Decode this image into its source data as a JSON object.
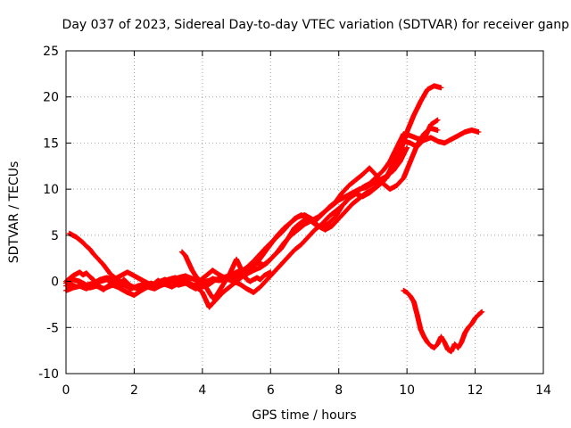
{
  "chart_data": {
    "type": "scatter",
    "title": "Day 037 of 2023, Sidereal Day-to-day VTEC variation (SDTVAR) for receiver ganp",
    "xlabel": "GPS time / hours",
    "ylabel": "SDTVAR / TECUs",
    "xlim": [
      0,
      14
    ],
    "ylim": [
      -10,
      25
    ],
    "xticks": [
      0,
      2,
      4,
      6,
      8,
      10,
      12,
      14
    ],
    "yticks": [
      -10,
      -5,
      0,
      5,
      10,
      15,
      20,
      25
    ],
    "grid": true,
    "marker": "plus",
    "series_color": "#ff0000",
    "series": [
      {
        "x": [
          0.0,
          0.15,
          0.3,
          0.5,
          0.7,
          0.9,
          1.1,
          1.3,
          1.5,
          1.7,
          1.9,
          2.1,
          2.3,
          2.5,
          2.7,
          2.9,
          3.1,
          3.3,
          3.5,
          3.7,
          3.9,
          4.1,
          4.3,
          4.5,
          4.7,
          4.9,
          5.1,
          5.3,
          5.5,
          5.7,
          5.9,
          6.1,
          6.3,
          6.5,
          6.7,
          6.9,
          7.1,
          7.3,
          7.5,
          7.7,
          7.9,
          8.1,
          8.3,
          8.5,
          8.7,
          8.9,
          9.1,
          9.3,
          9.5,
          9.7,
          9.9,
          10.1,
          10.3,
          10.5,
          10.7,
          10.9,
          11.1,
          11.3,
          11.5,
          11.7,
          11.9,
          12.1
        ],
        "y": [
          -0.5,
          -0.3,
          -0.6,
          -0.4,
          -0.7,
          -0.5,
          -0.9,
          -0.3,
          -0.6,
          0.2,
          -0.5,
          -0.8,
          -0.2,
          -0.5,
          0.1,
          -0.3,
          -0.6,
          -0.2,
          0.3,
          -0.4,
          -0.6,
          -0.2,
          0.3,
          0.1,
          0.5,
          0.3,
          0.6,
          0.8,
          1.2,
          1.5,
          2.0,
          2.8,
          3.5,
          4.6,
          5.8,
          6.4,
          6.8,
          6.2,
          5.8,
          6.3,
          7.0,
          8.2,
          9.0,
          9.6,
          10.2,
          10.6,
          11.3,
          12.0,
          13.0,
          14.5,
          16.0,
          15.8,
          15.5,
          15.3,
          15.6,
          15.2,
          15.0,
          15.4,
          15.8,
          16.2,
          16.4,
          16.2
        ]
      },
      {
        "x": [
          0.0,
          0.1,
          0.2,
          0.3,
          0.4,
          0.5,
          0.6,
          0.7,
          0.8,
          0.9,
          1.0,
          1.1,
          1.3,
          1.5,
          1.7,
          1.9,
          2.1,
          2.3,
          2.5,
          2.7,
          2.9,
          3.1,
          3.3,
          3.5,
          3.7,
          3.9,
          4.1,
          4.3,
          4.5,
          4.7,
          4.9,
          5.1,
          5.3,
          5.5,
          5.7,
          5.9,
          6.1,
          6.3,
          6.5,
          6.7,
          6.9,
          7.1,
          7.3,
          7.5,
          7.7,
          7.9,
          8.1,
          8.3,
          8.5,
          8.7,
          8.9,
          9.1,
          9.3,
          9.5,
          9.7,
          9.9,
          10.1,
          10.3,
          10.5,
          10.7,
          10.9
        ],
        "y": [
          0.0,
          0.3,
          0.6,
          0.8,
          1.0,
          0.7,
          0.9,
          0.5,
          0.2,
          -0.2,
          -0.6,
          -0.8,
          -0.5,
          -0.2,
          -0.4,
          -0.8,
          -0.5,
          -0.3,
          -0.6,
          -0.1,
          0.2,
          0.0,
          -0.4,
          -0.2,
          -0.5,
          -0.3,
          0.0,
          0.2,
          0.1,
          0.3,
          0.5,
          1.0,
          1.5,
          2.2,
          3.0,
          3.8,
          4.5,
          5.2,
          6.0,
          6.8,
          7.2,
          6.8,
          6.5,
          7.2,
          8.0,
          8.6,
          9.6,
          10.4,
          11.0,
          11.6,
          12.3,
          11.5,
          10.6,
          10.0,
          10.4,
          11.2,
          13.0,
          14.8,
          16.0,
          16.6,
          16.4
        ]
      },
      {
        "x": [
          0.1,
          0.2,
          0.3,
          0.4,
          0.5,
          0.6,
          0.7,
          0.8,
          0.9,
          1.0,
          1.1,
          1.3,
          1.5,
          1.7,
          1.9,
          2.1,
          2.3,
          2.5,
          2.7,
          2.9,
          3.1,
          3.3,
          3.5,
          3.7,
          3.9,
          4.1,
          4.3,
          4.5,
          4.7,
          4.9,
          5.1,
          5.3,
          5.5,
          5.7,
          5.9,
          6.1,
          6.3,
          6.5,
          6.7,
          6.9,
          7.1,
          7.3,
          7.5,
          7.7,
          7.9,
          8.1,
          8.3,
          8.5,
          8.7,
          8.9,
          9.1,
          9.3,
          9.5,
          9.7,
          9.9,
          10.1,
          10.3,
          10.5,
          10.7,
          10.9
        ],
        "y": [
          5.2,
          5.0,
          4.8,
          4.5,
          4.2,
          3.8,
          3.5,
          3.0,
          2.6,
          2.2,
          1.8,
          0.8,
          0.2,
          -0.2,
          -0.5,
          -0.8,
          -0.4,
          -0.2,
          -0.5,
          -0.3,
          0.1,
          0.4,
          0.6,
          0.3,
          0.0,
          0.6,
          1.2,
          0.7,
          0.3,
          0.0,
          -0.3,
          -0.8,
          -1.2,
          -0.6,
          0.2,
          1.0,
          1.8,
          2.6,
          3.4,
          4.0,
          4.8,
          5.6,
          6.2,
          7.0,
          7.6,
          8.2,
          9.0,
          9.5,
          9.2,
          9.6,
          10.2,
          10.8,
          12.0,
          13.8,
          15.2,
          15.0,
          14.6,
          15.4,
          17.0,
          17.5
        ]
      },
      {
        "x": [
          0.0,
          0.2,
          0.4,
          0.6,
          0.8,
          1.0,
          1.2,
          1.4,
          1.6,
          1.8,
          2.0,
          2.2,
          2.4,
          2.6,
          2.8,
          3.0,
          3.2,
          3.4,
          3.6,
          3.8,
          4.0,
          4.2,
          4.4,
          4.6,
          4.8,
          5.0,
          5.2,
          5.4,
          5.6,
          5.8,
          6.0,
          6.2,
          6.4,
          6.6,
          6.8,
          7.0,
          7.2,
          7.4,
          7.6,
          7.8,
          8.0,
          8.2,
          8.4,
          8.6,
          8.8,
          9.0,
          9.2,
          9.4,
          9.6,
          9.8,
          10.0,
          10.2,
          10.4,
          10.6,
          10.8,
          11.0
        ],
        "y": [
          -1.0,
          -0.7,
          -0.5,
          -0.8,
          -0.4,
          0.0,
          0.2,
          -0.3,
          -0.8,
          -1.2,
          -1.5,
          -1.0,
          -0.6,
          -0.8,
          -0.4,
          0.0,
          0.3,
          0.1,
          -0.2,
          -0.5,
          -1.2,
          -2.8,
          -2.0,
          -1.2,
          -0.6,
          0.0,
          0.6,
          1.2,
          2.0,
          3.0,
          4.0,
          5.0,
          5.8,
          6.4,
          7.0,
          7.2,
          6.8,
          6.0,
          5.6,
          6.0,
          6.8,
          7.6,
          8.4,
          9.0,
          9.6,
          10.0,
          10.6,
          11.2,
          12.4,
          14.0,
          16.2,
          18.0,
          19.5,
          20.8,
          21.2,
          21.0
        ]
      },
      {
        "x": [
          0.0,
          0.2,
          0.4,
          0.6,
          0.8,
          1.0,
          1.2,
          1.4,
          1.6,
          1.8,
          2.0,
          2.2,
          2.4,
          2.6,
          2.8,
          3.0,
          3.2,
          3.4,
          3.6,
          3.8,
          4.0,
          4.2,
          4.4,
          4.6,
          4.8,
          5.0,
          5.2,
          5.4,
          5.6,
          5.8,
          6.0,
          6.2,
          6.4,
          6.6,
          6.8,
          7.0,
          7.2,
          7.4,
          7.6,
          7.8,
          8.0,
          8.2,
          8.4,
          8.6,
          8.8,
          9.0,
          9.2,
          9.4,
          9.6,
          9.8,
          10.0
        ],
        "y": [
          -0.2,
          0.2,
          0.0,
          -0.4,
          -0.2,
          0.2,
          0.4,
          0.2,
          0.6,
          1.0,
          0.6,
          0.2,
          -0.2,
          -0.6,
          -0.3,
          0.2,
          0.4,
          0.2,
          -0.4,
          -0.8,
          -0.6,
          -0.3,
          0.2,
          0.4,
          0.6,
          1.0,
          1.2,
          1.6,
          2.0,
          1.8,
          2.4,
          3.2,
          4.2,
          5.0,
          5.6,
          6.2,
          6.6,
          7.0,
          7.6,
          8.2,
          8.8,
          9.2,
          9.6,
          10.0,
          10.2,
          10.6,
          11.0,
          11.4,
          12.0,
          13.0,
          14.5
        ]
      },
      {
        "x": [
          3.4,
          3.5,
          3.6,
          3.7,
          3.8,
          3.9,
          4.0,
          4.1,
          4.2,
          4.3,
          4.4,
          4.5,
          4.6,
          4.7,
          4.8,
          4.9,
          5.0,
          5.1,
          5.2,
          5.3,
          5.4,
          5.5,
          5.6,
          5.7,
          5.8,
          5.9,
          6.0
        ],
        "y": [
          3.2,
          2.8,
          2.0,
          1.2,
          0.6,
          0.2,
          -0.2,
          -0.6,
          -1.2,
          -1.8,
          -1.6,
          -1.0,
          -0.4,
          0.2,
          0.8,
          1.6,
          2.4,
          1.6,
          0.8,
          0.2,
          0.0,
          0.2,
          0.4,
          0.2,
          0.6,
          0.8,
          1.0
        ]
      },
      {
        "x": [
          9.9,
          10.0,
          10.1,
          10.2,
          10.3,
          10.4,
          10.5,
          10.6,
          10.7,
          10.8,
          10.9,
          11.0,
          11.1,
          11.2,
          11.3,
          11.4,
          11.5,
          11.6,
          11.7,
          11.8,
          11.9,
          12.0,
          12.1,
          12.2
        ],
        "y": [
          -1.0,
          -1.2,
          -1.6,
          -2.2,
          -3.6,
          -5.2,
          -6.0,
          -6.6,
          -7.0,
          -7.2,
          -6.8,
          -6.0,
          -6.6,
          -7.4,
          -7.6,
          -6.8,
          -7.2,
          -6.6,
          -5.6,
          -5.0,
          -4.6,
          -4.0,
          -3.6,
          -3.3
        ]
      }
    ]
  }
}
